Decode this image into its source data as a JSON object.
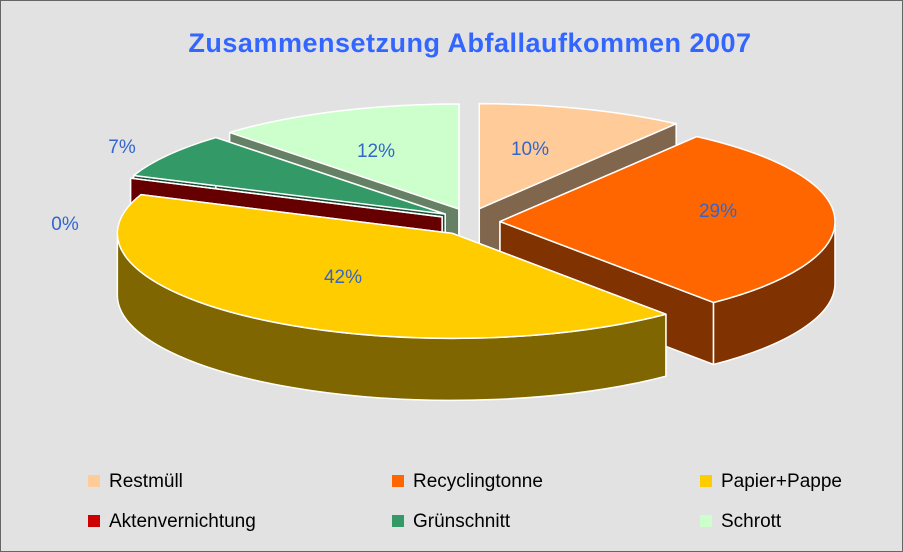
{
  "chart_data": {
    "type": "pie3d",
    "title": "Zusammensetzung Abfallaufkommen 2007",
    "categories": [
      "Restmüll",
      "Recyclingtonne",
      "Papier+Pappe",
      "Aktenvernichtung",
      "Grünschnitt",
      "Schrott"
    ],
    "values": [
      10,
      29,
      42,
      0,
      7,
      12
    ],
    "value_labels": [
      "10%",
      "29%",
      "42%",
      "0%",
      "7%",
      "12%"
    ],
    "colors": [
      "#ffcc99",
      "#ff6600",
      "#ffcc00",
      "#cc0000",
      "#339966",
      "#ccffcc"
    ],
    "legend": "bottom"
  }
}
